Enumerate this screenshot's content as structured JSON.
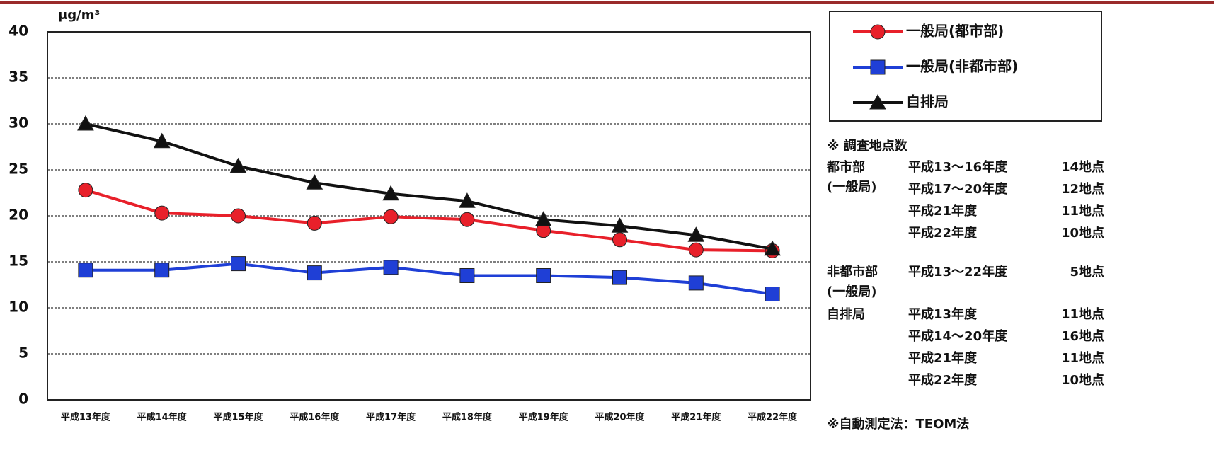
{
  "chart_data": {
    "type": "line",
    "y_unit": "μg/m³",
    "categories": [
      "平成13年度",
      "平成14年度",
      "平成15年度",
      "平成16年度",
      "平成17年度",
      "平成18年度",
      "平成19年度",
      "平成20年度",
      "平成21年度",
      "平成22年度"
    ],
    "series": [
      {
        "name": "一般局(都市部)",
        "color": "#e8202a",
        "marker": "circle",
        "values": [
          22.8,
          20.3,
          20.0,
          19.2,
          19.9,
          19.6,
          18.4,
          17.4,
          16.3,
          16.2
        ]
      },
      {
        "name": "一般局(非都市部)",
        "color": "#1f3fd6",
        "marker": "square",
        "values": [
          14.1,
          14.1,
          14.8,
          13.8,
          14.4,
          13.5,
          13.5,
          13.3,
          12.7,
          11.5
        ]
      },
      {
        "name": "自排局",
        "color": "#111111",
        "marker": "triangle",
        "values": [
          30.0,
          28.1,
          25.4,
          23.6,
          22.4,
          21.6,
          19.6,
          18.9,
          17.9,
          16.4
        ]
      }
    ],
    "ylim": [
      0,
      40
    ],
    "yticks": [
      0,
      5,
      10,
      15,
      20,
      25,
      30,
      35,
      40
    ],
    "grid": true,
    "legend": "top-right",
    "notes": {
      "title": "※ 調査地点数",
      "groups": [
        {
          "label": [
            "都市部",
            "(一般局)"
          ],
          "rows": [
            [
              "平成13～16年度",
              "14地点"
            ],
            [
              "平成17～20年度",
              "12地点"
            ],
            [
              "平成21年度",
              "11地点"
            ],
            [
              "平成22年度",
              "10地点"
            ]
          ]
        },
        {
          "label": [
            "非都市部",
            "(一般局)"
          ],
          "rows": [
            [
              "平成13～22年度",
              "5地点"
            ]
          ]
        },
        {
          "label": [
            "自排局"
          ],
          "rows": [
            [
              "平成13年度",
              "11地点"
            ],
            [
              "平成14～20年度",
              "16地点"
            ],
            [
              "平成21年度",
              "11地点"
            ],
            [
              "平成22年度",
              "10地点"
            ]
          ]
        }
      ],
      "footer": "※自動測定法：TEOM法"
    }
  }
}
